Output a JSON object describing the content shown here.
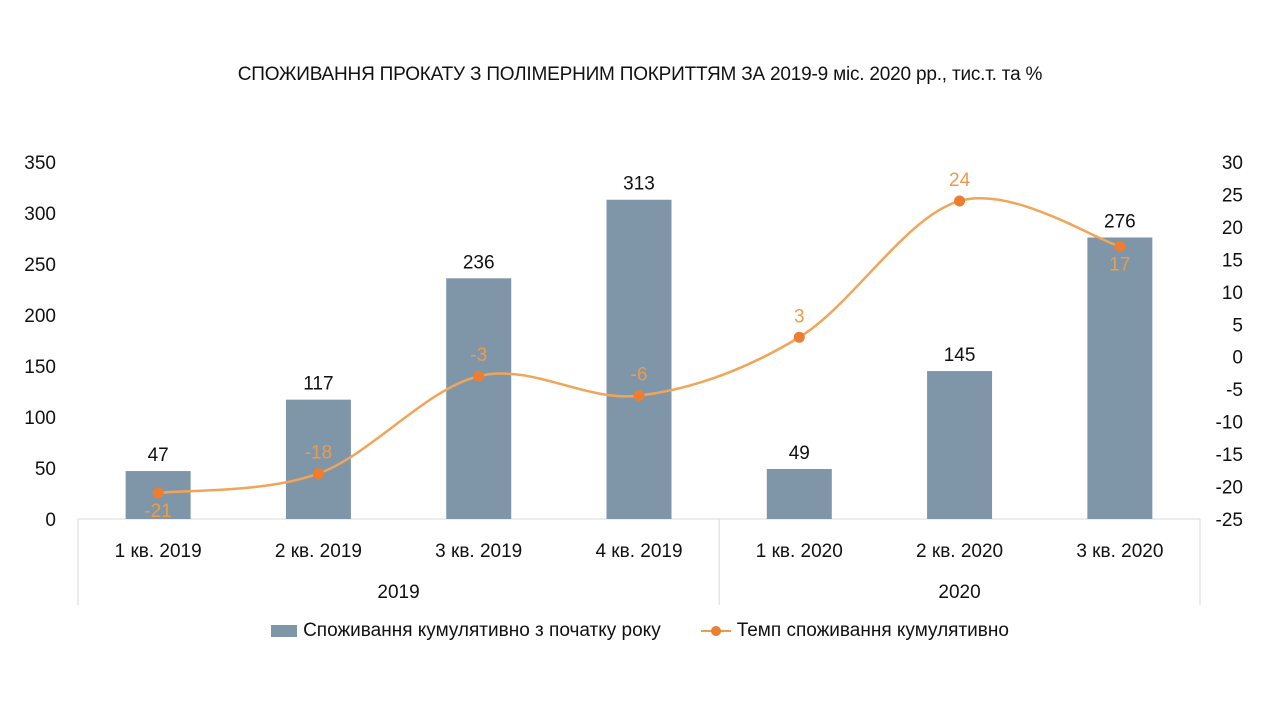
{
  "colors": {
    "bar": "#7F96A9",
    "line": "#F0A55A",
    "marker": "#ED7D31",
    "line_label": "#ED9B4A",
    "axis": "#D9D9D9"
  },
  "legend": {
    "bar_label": "Споживання кумулятивно з початку року",
    "line_label": "Темп споживання кумулятивно"
  },
  "chart_data": {
    "type": "bar",
    "title": "СПОЖИВАННЯ ПРОКАТУ З ПОЛІМЕРНИМ ПОКРИТТЯМ ЗА 2019-9 міс. 2020 рр., тис.т.  та %",
    "categories": [
      "1 кв. 2019",
      "2 кв. 2019",
      "3 кв. 2019",
      "4 кв. 2019",
      "1 кв. 2020",
      "2 кв. 2020",
      "3 кв. 2020"
    ],
    "groups": [
      {
        "label": "2019",
        "count": 4
      },
      {
        "label": "2020",
        "count": 3
      }
    ],
    "series": [
      {
        "name": "Споживання кумулятивно з початку року",
        "type": "bar",
        "axis": "left",
        "values": [
          47,
          117,
          236,
          313,
          49,
          145,
          276
        ]
      },
      {
        "name": "Темп споживання кумулятивно",
        "type": "line",
        "axis": "right",
        "smooth": true,
        "values": [
          -21,
          -18,
          -3,
          -6,
          3,
          24,
          17
        ]
      }
    ],
    "y_left": {
      "min": 0,
      "max": 350,
      "step": 50,
      "ticks": [
        "0",
        "50",
        "100",
        "150",
        "200",
        "250",
        "300",
        "350"
      ]
    },
    "y_right": {
      "min": -25,
      "max": 30,
      "step": 5,
      "ticks": [
        "-25",
        "-20",
        "-15",
        "-10",
        "-5",
        "0",
        "5",
        "10",
        "15",
        "20",
        "25",
        "30"
      ]
    },
    "grid": false,
    "legend_position": "bottom"
  }
}
